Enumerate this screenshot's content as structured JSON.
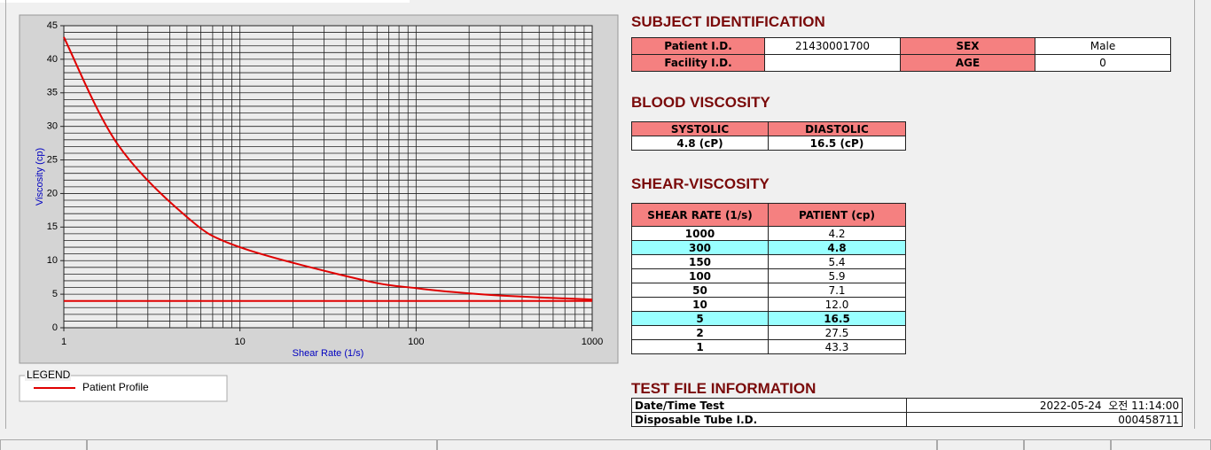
{
  "chart_data": {
    "type": "line",
    "xlabel": "Shear Rate (1/s)",
    "ylabel": "Viscosity (cp)",
    "xlim": [
      1,
      1000
    ],
    "xticks": [
      1,
      10,
      100,
      1000
    ],
    "xscale": "log",
    "xminorticks": [
      2,
      3,
      4,
      5,
      6,
      7,
      8,
      9,
      20,
      30,
      40,
      50,
      60,
      70,
      80,
      90,
      200,
      300,
      400,
      500,
      600,
      700,
      800,
      900
    ],
    "ylim": [
      0,
      45
    ],
    "yticks": [
      0,
      5,
      10,
      15,
      20,
      25,
      30,
      35,
      40,
      45
    ],
    "yminorticks": [
      1,
      2,
      3,
      4,
      6,
      7,
      8,
      9,
      11,
      12,
      13,
      14,
      16,
      17,
      18,
      19,
      21,
      22,
      23,
      24,
      26,
      27,
      28,
      29,
      31,
      32,
      33,
      34,
      36,
      37,
      38,
      39,
      41,
      42,
      43,
      44
    ],
    "grid": true,
    "series": [
      {
        "name": "Patient Profile",
        "color": "#e00000",
        "x": [
          1,
          2,
          5,
          10,
          50,
          100,
          150,
          300,
          1000
        ],
        "values": [
          43.3,
          27.5,
          16.5,
          12.0,
          7.1,
          5.9,
          5.4,
          4.8,
          4.2
        ]
      }
    ],
    "hline": {
      "y": 4.0,
      "color": "#e00000"
    },
    "legend_title": "LEGEND"
  },
  "subject_identification": {
    "title": "SUBJECT IDENTIFICATION",
    "rows": [
      [
        "Patient I.D.",
        "21430001700",
        "SEX",
        "Male"
      ],
      [
        "Facility I.D.",
        null,
        "AGE",
        "0"
      ]
    ]
  },
  "blood_viscosity": {
    "title": "BLOOD VISCOSITY",
    "headers": [
      "SYSTOLIC",
      "DIASTOLIC"
    ],
    "values": [
      "4.8 (cP)",
      "16.5 (cP)"
    ]
  },
  "shear_viscosity": {
    "title": "SHEAR-VISCOSITY",
    "headers": [
      "SHEAR RATE (1/s)",
      "PATIENT (cp)"
    ],
    "rows": [
      [
        "1000",
        "4.2"
      ],
      [
        "300",
        "4.8"
      ],
      [
        "150",
        "5.4"
      ],
      [
        "100",
        "5.9"
      ],
      [
        "50",
        "7.1"
      ],
      [
        "10",
        "12.0"
      ],
      [
        "5",
        "16.5"
      ],
      [
        "2",
        "27.5"
      ],
      [
        "1",
        "43.3"
      ]
    ]
  },
  "test_file": {
    "title": "TEST FILE INFORMATION",
    "rows": [
      [
        "Date/Time Test",
        "2022-05-24  오전 11:14:00"
      ],
      [
        "Disposable Tube I.D.",
        "000458711"
      ]
    ]
  }
}
